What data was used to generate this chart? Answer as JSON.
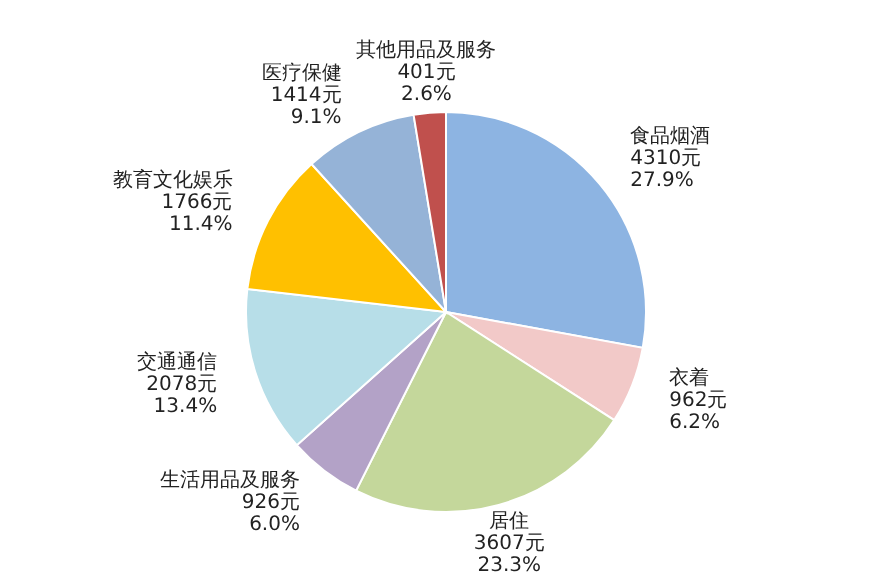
{
  "chart_data": {
    "type": "pie",
    "categories": [
      "食品烟酒",
      "衣着",
      "居住",
      "生活用品及服务",
      "交通通信",
      "教育文化娱乐",
      "医疗保健",
      "其他用品及服务"
    ],
    "values": [
      4310,
      962,
      3607,
      926,
      2078,
      1766,
      1414,
      401
    ],
    "value_labels": [
      "4310元 27.9%",
      "962元 6.2%",
      "3607元 23.3%",
      "926元 6.0%",
      "2078元 13.4%",
      "1766元 11.4%",
      "1414元 9.1%",
      "401元 2.6%"
    ],
    "colors": [
      "#8db4e2",
      "#f2c9c8",
      "#c4d79b",
      "#b3a2c7",
      "#b7dee8",
      "#ffc000",
      "#95b3d7",
      "#c0504d"
    ]
  }
}
